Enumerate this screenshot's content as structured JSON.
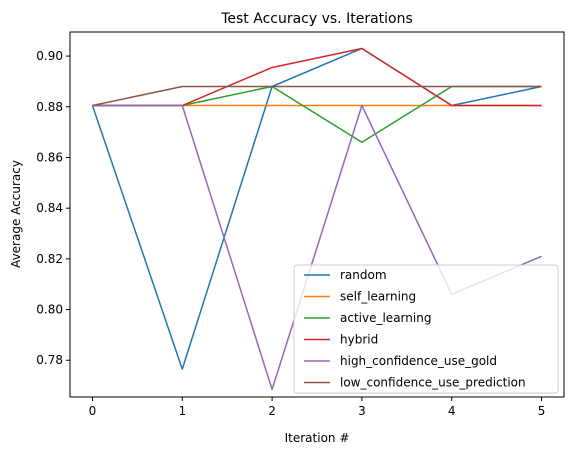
{
  "chart_data": {
    "type": "line",
    "title": "Test Accuracy vs. Iterations",
    "xlabel": "Iteration #",
    "ylabel": "Average Accuracy",
    "x": [
      0,
      1,
      2,
      3,
      4,
      5
    ],
    "xlim": [
      -0.25,
      5.25
    ],
    "ylim": [
      0.7655,
      0.9095
    ],
    "xticks": [
      0,
      1,
      2,
      3,
      4,
      5
    ],
    "yticks": [
      0.78,
      0.8,
      0.82,
      0.84,
      0.86,
      0.88,
      0.9
    ],
    "ytick_labels": [
      "0.78",
      "0.80",
      "0.82",
      "0.84",
      "0.86",
      "0.88",
      "0.90"
    ],
    "grid": false,
    "legend_position": "lower-right",
    "series": [
      {
        "name": "random",
        "color": "#1f77b4",
        "values": [
          0.8805,
          0.7765,
          0.888,
          0.903,
          0.8805,
          0.888
        ]
      },
      {
        "name": "self_learning",
        "color": "#ff7f0e",
        "values": [
          0.8805,
          0.8805,
          0.8805,
          0.8805,
          0.8805,
          0.8805
        ]
      },
      {
        "name": "active_learning",
        "color": "#2ca02c",
        "values": [
          0.8805,
          0.8805,
          0.888,
          0.866,
          0.888,
          0.888
        ]
      },
      {
        "name": "hybrid",
        "color": "#d62728",
        "values": [
          0.8805,
          0.8805,
          0.8955,
          0.903,
          0.8805,
          0.8805
        ]
      },
      {
        "name": "high_confidence_use_gold",
        "color": "#9467bd",
        "values": [
          0.8805,
          0.8805,
          0.7685,
          0.8805,
          0.806,
          0.821
        ]
      },
      {
        "name": "low_confidence_use_prediction",
        "color": "#8c564b",
        "values": [
          0.8805,
          0.888,
          0.888,
          0.888,
          0.888,
          0.888
        ]
      }
    ]
  }
}
